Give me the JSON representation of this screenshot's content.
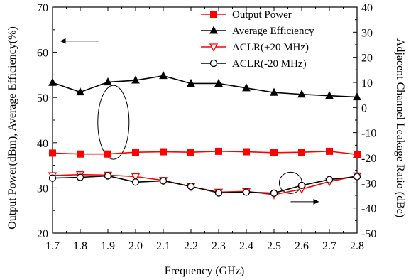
{
  "chart_data": {
    "type": "line",
    "title": "",
    "xlabel": "Frequency (GHz)",
    "ylabel_left": "Output Power(dBm), Average Efficiency(%)",
    "ylabel_right": "Adjacent Channel Leakage Ratio (dBc)",
    "xlim": [
      1.7,
      2.8
    ],
    "ylim_left": [
      20,
      70
    ],
    "ylim_right": [
      -50,
      40
    ],
    "x_ticks": [
      "1.7",
      "1.8",
      "1.9",
      "2.0",
      "2.1",
      "2.2",
      "2.3",
      "2.4",
      "2.5",
      "2.6",
      "2.7",
      "2.8"
    ],
    "y_ticks_left": [
      "20",
      "30",
      "40",
      "50",
      "60",
      "70"
    ],
    "y_ticks_right": [
      "-50",
      "-40",
      "-30",
      "-20",
      "-10",
      "0",
      "10",
      "20",
      "30",
      "40"
    ],
    "grid": false,
    "legend_position": "top-right",
    "x": [
      1.7,
      1.8,
      1.9,
      2.0,
      2.1,
      2.2,
      2.3,
      2.4,
      2.5,
      2.6,
      2.7,
      2.8
    ],
    "series": [
      {
        "name": "Output Power",
        "axis": "left",
        "color": "#ff0000",
        "marker": "square",
        "values": [
          37.7,
          37.5,
          37.5,
          37.9,
          38.0,
          37.9,
          38.1,
          38.0,
          37.8,
          37.9,
          38.1,
          37.4
        ]
      },
      {
        "name": "Average Efficiency",
        "axis": "left",
        "color": "#000000",
        "marker": "triangle",
        "values": [
          53.3,
          51.2,
          53.4,
          53.8,
          54.8,
          53.1,
          53.1,
          52.1,
          51.1,
          50.7,
          50.4,
          50.1
        ]
      },
      {
        "name": "ACLR(+20 MHz)",
        "axis": "right",
        "color": "#ff0000",
        "marker": "triangle-down-open",
        "values": [
          -27.1,
          -26.7,
          -26.9,
          -27.5,
          -29.0,
          -31.5,
          -33.7,
          -33.4,
          -34.7,
          -32.5,
          -29.5,
          -27.2
        ]
      },
      {
        "name": "ACLR(-20 MHz)",
        "axis": "right",
        "color": "#000000",
        "marker": "circle-open",
        "values": [
          -28.1,
          -27.8,
          -27.2,
          -29.7,
          -29.2,
          -31.4,
          -34.0,
          -33.7,
          -34.1,
          -31.0,
          -28.7,
          -27.5
        ]
      }
    ],
    "annotations": [
      {
        "type": "ellipse",
        "target": "Average Efficiency",
        "arrow": "left"
      },
      {
        "type": "ellipse",
        "target": "ACLR(-20 MHz)",
        "arrow": "right"
      }
    ]
  }
}
